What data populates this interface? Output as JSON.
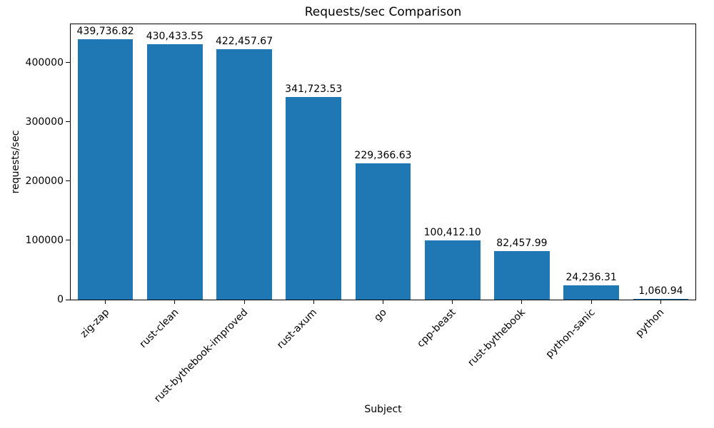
{
  "chart_data": {
    "type": "bar",
    "title": "Requests/sec Comparison",
    "xlabel": "Subject",
    "ylabel": "requests/sec",
    "categories": [
      "zig-zap",
      "rust-clean",
      "rust-bythebook-improved",
      "rust-axum",
      "go",
      "cpp-beast",
      "rust-bythebook",
      "python-sanic",
      "python"
    ],
    "values": [
      439736.82,
      430433.55,
      422457.67,
      341723.53,
      229366.63,
      100412.1,
      82457.99,
      24236.31,
      1060.94
    ],
    "value_labels": [
      "439,736.82",
      "430,433.55",
      "422,457.67",
      "341,723.53",
      "229,366.63",
      "100,412.10",
      "82,457.99",
      "24,236.31",
      "1,060.94"
    ],
    "yticks": [
      0,
      100000,
      200000,
      300000,
      400000
    ],
    "ylim": [
      0,
      464670
    ],
    "bar_color": "#1f77b4",
    "grid": false,
    "legend": null,
    "x_tick_rotation": 45,
    "bar_width_fraction": 0.8
  }
}
